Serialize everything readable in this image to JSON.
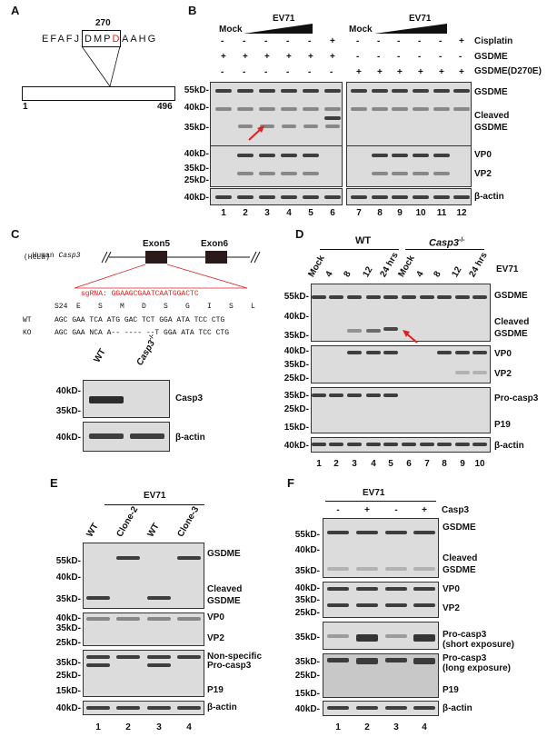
{
  "panels": {
    "A": "A",
    "B": "B",
    "C": "C",
    "D": "D",
    "E": "E",
    "F": "F"
  },
  "A": {
    "seq_left": "EFAFJ",
    "seq_box": "DMPD",
    "seq_right": "AAHG",
    "pos": "270",
    "start": "1",
    "end": "496"
  },
  "B": {
    "mock": "Mock",
    "ev71": "EV71",
    "row_cis": "Cisplatin",
    "row_gsdme": "GSDME",
    "row_mut": "GSDME(D270E)",
    "cis": [
      "-",
      "-",
      "-",
      "-",
      "-",
      "+",
      "-",
      "-",
      "-",
      "-",
      "-",
      "+"
    ],
    "gsd": [
      "+",
      "+",
      "+",
      "+",
      "+",
      "+",
      "-",
      "-",
      "-",
      "-",
      "-",
      "-"
    ],
    "mut": [
      "-",
      "-",
      "-",
      "-",
      "-",
      "-",
      "+",
      "+",
      "+",
      "+",
      "+",
      "+"
    ],
    "mw": [
      "55kD-",
      "40kD-",
      "35kD-",
      "40kD-",
      "35kD-",
      "25kD-",
      "40kD-"
    ],
    "right": [
      "GSDME",
      "Cleaved",
      "GSDME",
      "VP0",
      "VP2",
      "β-actin"
    ],
    "lanes": [
      "1",
      "2",
      "3",
      "4",
      "5",
      "6",
      "7",
      "8",
      "9",
      "10",
      "11",
      "12"
    ]
  },
  "C": {
    "human": "Human",
    "casp3": "Casp3",
    "hela": "(HeLa)",
    "exon5": "Exon5",
    "exon6": "Exon6",
    "sgrna": "sgRNA: GGAAGCGAATCAATGGACTC",
    "aa": "S24  E    S    M    D    S    G    I    S    L",
    "wt_label": "WT",
    "wt_seq": "AGC GAA TCA ATG GAC TCT GGA ATA TCC CTG",
    "ko_label": "KO",
    "ko_seq": "AGC GAA NCA A-- ---- --T GGA ATA TCC CTG",
    "blot_wt": "WT",
    "blot_ko": "Casp3",
    "mw": [
      "40kD-",
      "35kD-",
      "40kD-"
    ],
    "right": [
      "Casp3",
      "β-actin"
    ]
  },
  "D": {
    "wt": "WT",
    "ko": "Casp3",
    "ev71": "EV71",
    "cols": [
      "Mock",
      "4",
      "8",
      "12",
      "24 hrs",
      "Mock",
      "4",
      "8",
      "12",
      "24 hrs"
    ],
    "mw": [
      "55kD-",
      "40kD-",
      "35kD-",
      "40kD-",
      "35kD-",
      "25kD-",
      "35kD-",
      "25kD-",
      "15kD-",
      "40kD-"
    ],
    "right": [
      "GSDME",
      "Cleaved",
      "GSDME",
      "VP0",
      "VP2",
      "Pro-casp3",
      "P19",
      "β-actin"
    ],
    "lanes": [
      "1",
      "2",
      "3",
      "4",
      "5",
      "6",
      "7",
      "8",
      "9",
      "10"
    ]
  },
  "E": {
    "ev71": "EV71",
    "cols": [
      "WT",
      "Clone-2",
      "WT",
      "Clone-3"
    ],
    "mw": [
      "55kD-",
      "40kD-",
      "35kD-",
      "40kD-",
      "35kD-",
      "25kD-",
      "35kD-",
      "25kD-",
      "15kD-",
      "40kD-"
    ],
    "right": [
      "GSDME",
      "Cleaved",
      "GSDME",
      "VP0",
      "VP2",
      "Non-specific",
      "Pro-casp3",
      "P19",
      "β-actin"
    ],
    "lanes": [
      "1",
      "2",
      "3",
      "4"
    ]
  },
  "F": {
    "ev71": "EV71",
    "casp3": "Casp3",
    "ev": [
      "-",
      "+",
      "-",
      "+"
    ],
    "mw": [
      "55kD-",
      "40kD-",
      "35kD-",
      "40kD-",
      "35kD-",
      "25kD-",
      "35kD-",
      "35kD-",
      "25kD-",
      "15kD-",
      "40kD-"
    ],
    "right": [
      "GSDME",
      "Cleaved",
      "GSDME",
      "VP0",
      "VP2",
      "Pro-casp3",
      "(short exposure)",
      "Pro-casp3",
      "(long exposure)",
      "P19",
      "β-actin"
    ],
    "lanes": [
      "1",
      "2",
      "3",
      "4"
    ]
  },
  "colors": {
    "red": "#e0201e",
    "blot_bg": "#dcdcdc"
  }
}
